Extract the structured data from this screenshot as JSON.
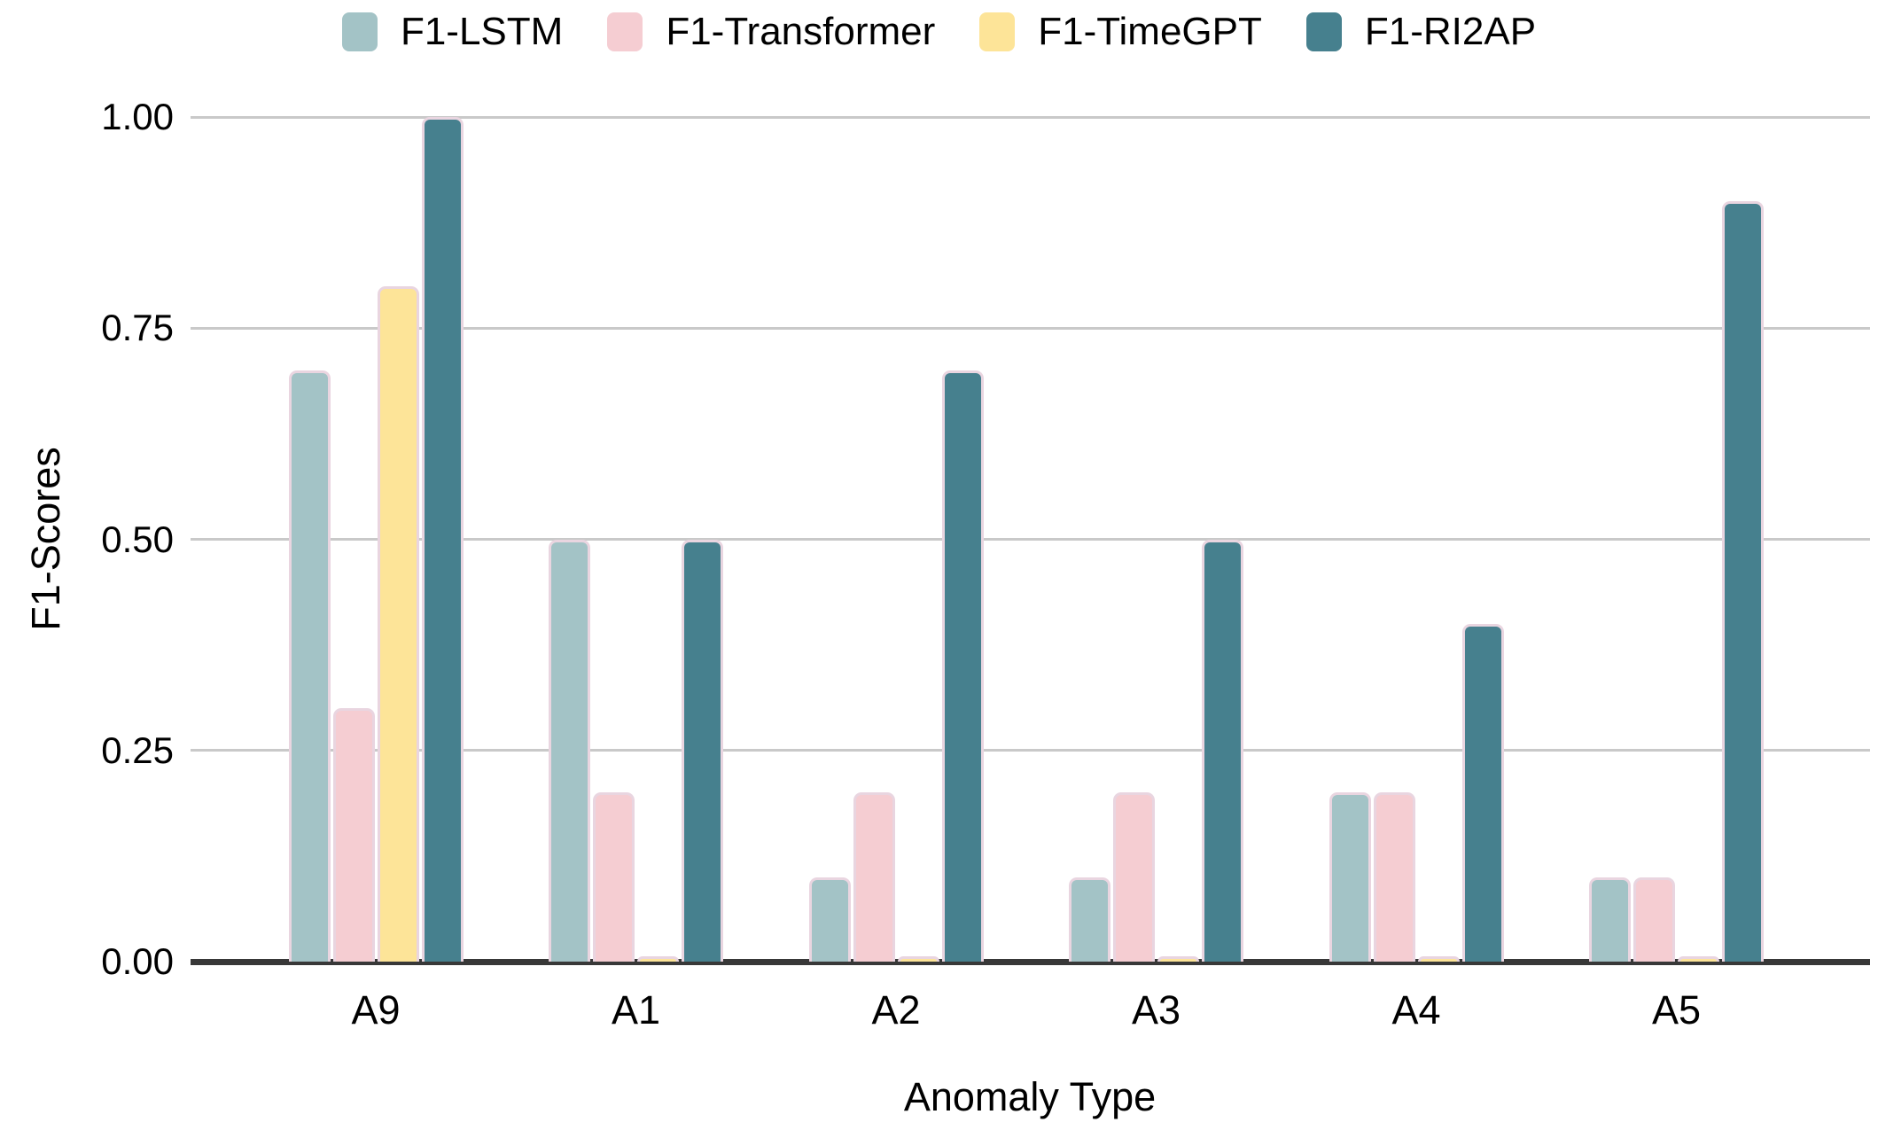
{
  "chart_data": {
    "type": "bar",
    "categories": [
      "A9",
      "A1",
      "A2",
      "A3",
      "A4",
      "A5"
    ],
    "series": [
      {
        "name": "F1-LSTM",
        "color": "#a3c3c6",
        "values": [
          0.7,
          0.5,
          0.1,
          0.1,
          0.2,
          0.1
        ]
      },
      {
        "name": "F1-Transformer",
        "color": "#f5cdd2",
        "values": [
          0.3,
          0.2,
          0.2,
          0.2,
          0.2,
          0.1
        ]
      },
      {
        "name": "F1-TimeGPT",
        "color": "#fde498",
        "values": [
          0.8,
          0.0,
          0.0,
          0.0,
          0.0,
          0.0
        ]
      },
      {
        "name": "F1-RI2AP",
        "color": "#46808e",
        "values": [
          1.0,
          0.5,
          0.7,
          0.5,
          0.4,
          0.9
        ]
      }
    ],
    "title": "",
    "xlabel": "Anomaly Type",
    "ylabel": "F1-Scores",
    "ylim": [
      0,
      1
    ],
    "yticks": [
      {
        "value": 0.0,
        "label": "0.00"
      },
      {
        "value": 0.25,
        "label": "0.25"
      },
      {
        "value": 0.5,
        "label": "0.50"
      },
      {
        "value": 0.75,
        "label": "0.75"
      },
      {
        "value": 1.0,
        "label": "1.00"
      }
    ],
    "grid": "horizontal",
    "legend_position": "top",
    "colors": {
      "bar_stroke": "#e9d5e0",
      "gridline": "#c9c9c9",
      "axis_line": "#383838",
      "text": "#000000",
      "background": "#ffffff"
    }
  }
}
